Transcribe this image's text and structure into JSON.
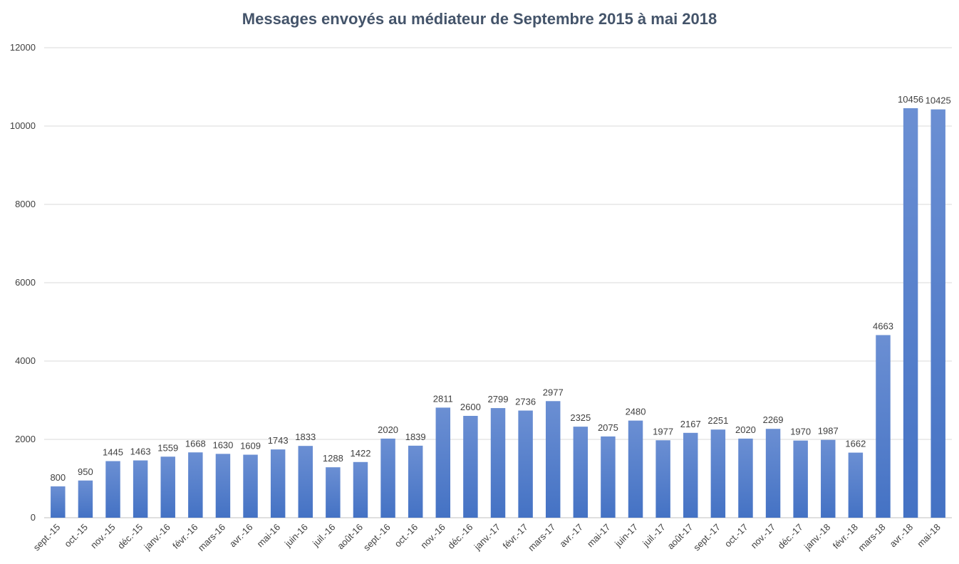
{
  "chart_data": {
    "type": "bar",
    "title": "Messages envoyés au médiateur de Septembre 2015 à mai 2018",
    "xlabel": "",
    "ylabel": "",
    "ylim": [
      0,
      12000
    ],
    "yticks": [
      0,
      2000,
      4000,
      6000,
      8000,
      10000,
      12000
    ],
    "grid": true,
    "legend": "none",
    "bar_color": "#4472c4",
    "categories": [
      "sept.-15",
      "oct.-15",
      "nov.-15",
      "déc.-15",
      "janv.-16",
      "févr.-16",
      "mars-16",
      "avr.-16",
      "mai-16",
      "juin-16",
      "juil.-16",
      "août-16",
      "sept.-16",
      "oct.-16",
      "nov.-16",
      "déc.-16",
      "janv.-17",
      "févr.-17",
      "mars-17",
      "avr.-17",
      "mai-17",
      "juin-17",
      "juil.-17",
      "août-17",
      "sept.-17",
      "oct.-17",
      "nov.-17",
      "déc.-17",
      "janv.-18",
      "févr.-18",
      "mars-18",
      "avr.-18",
      "mai-18"
    ],
    "values": [
      800,
      950,
      1445,
      1463,
      1559,
      1668,
      1630,
      1609,
      1743,
      1833,
      1288,
      1422,
      2020,
      1839,
      2811,
      2600,
      2799,
      2736,
      2977,
      2325,
      2075,
      2480,
      1977,
      2167,
      2251,
      2020,
      2269,
      1970,
      1987,
      1662,
      4663,
      10456,
      10425
    ]
  }
}
